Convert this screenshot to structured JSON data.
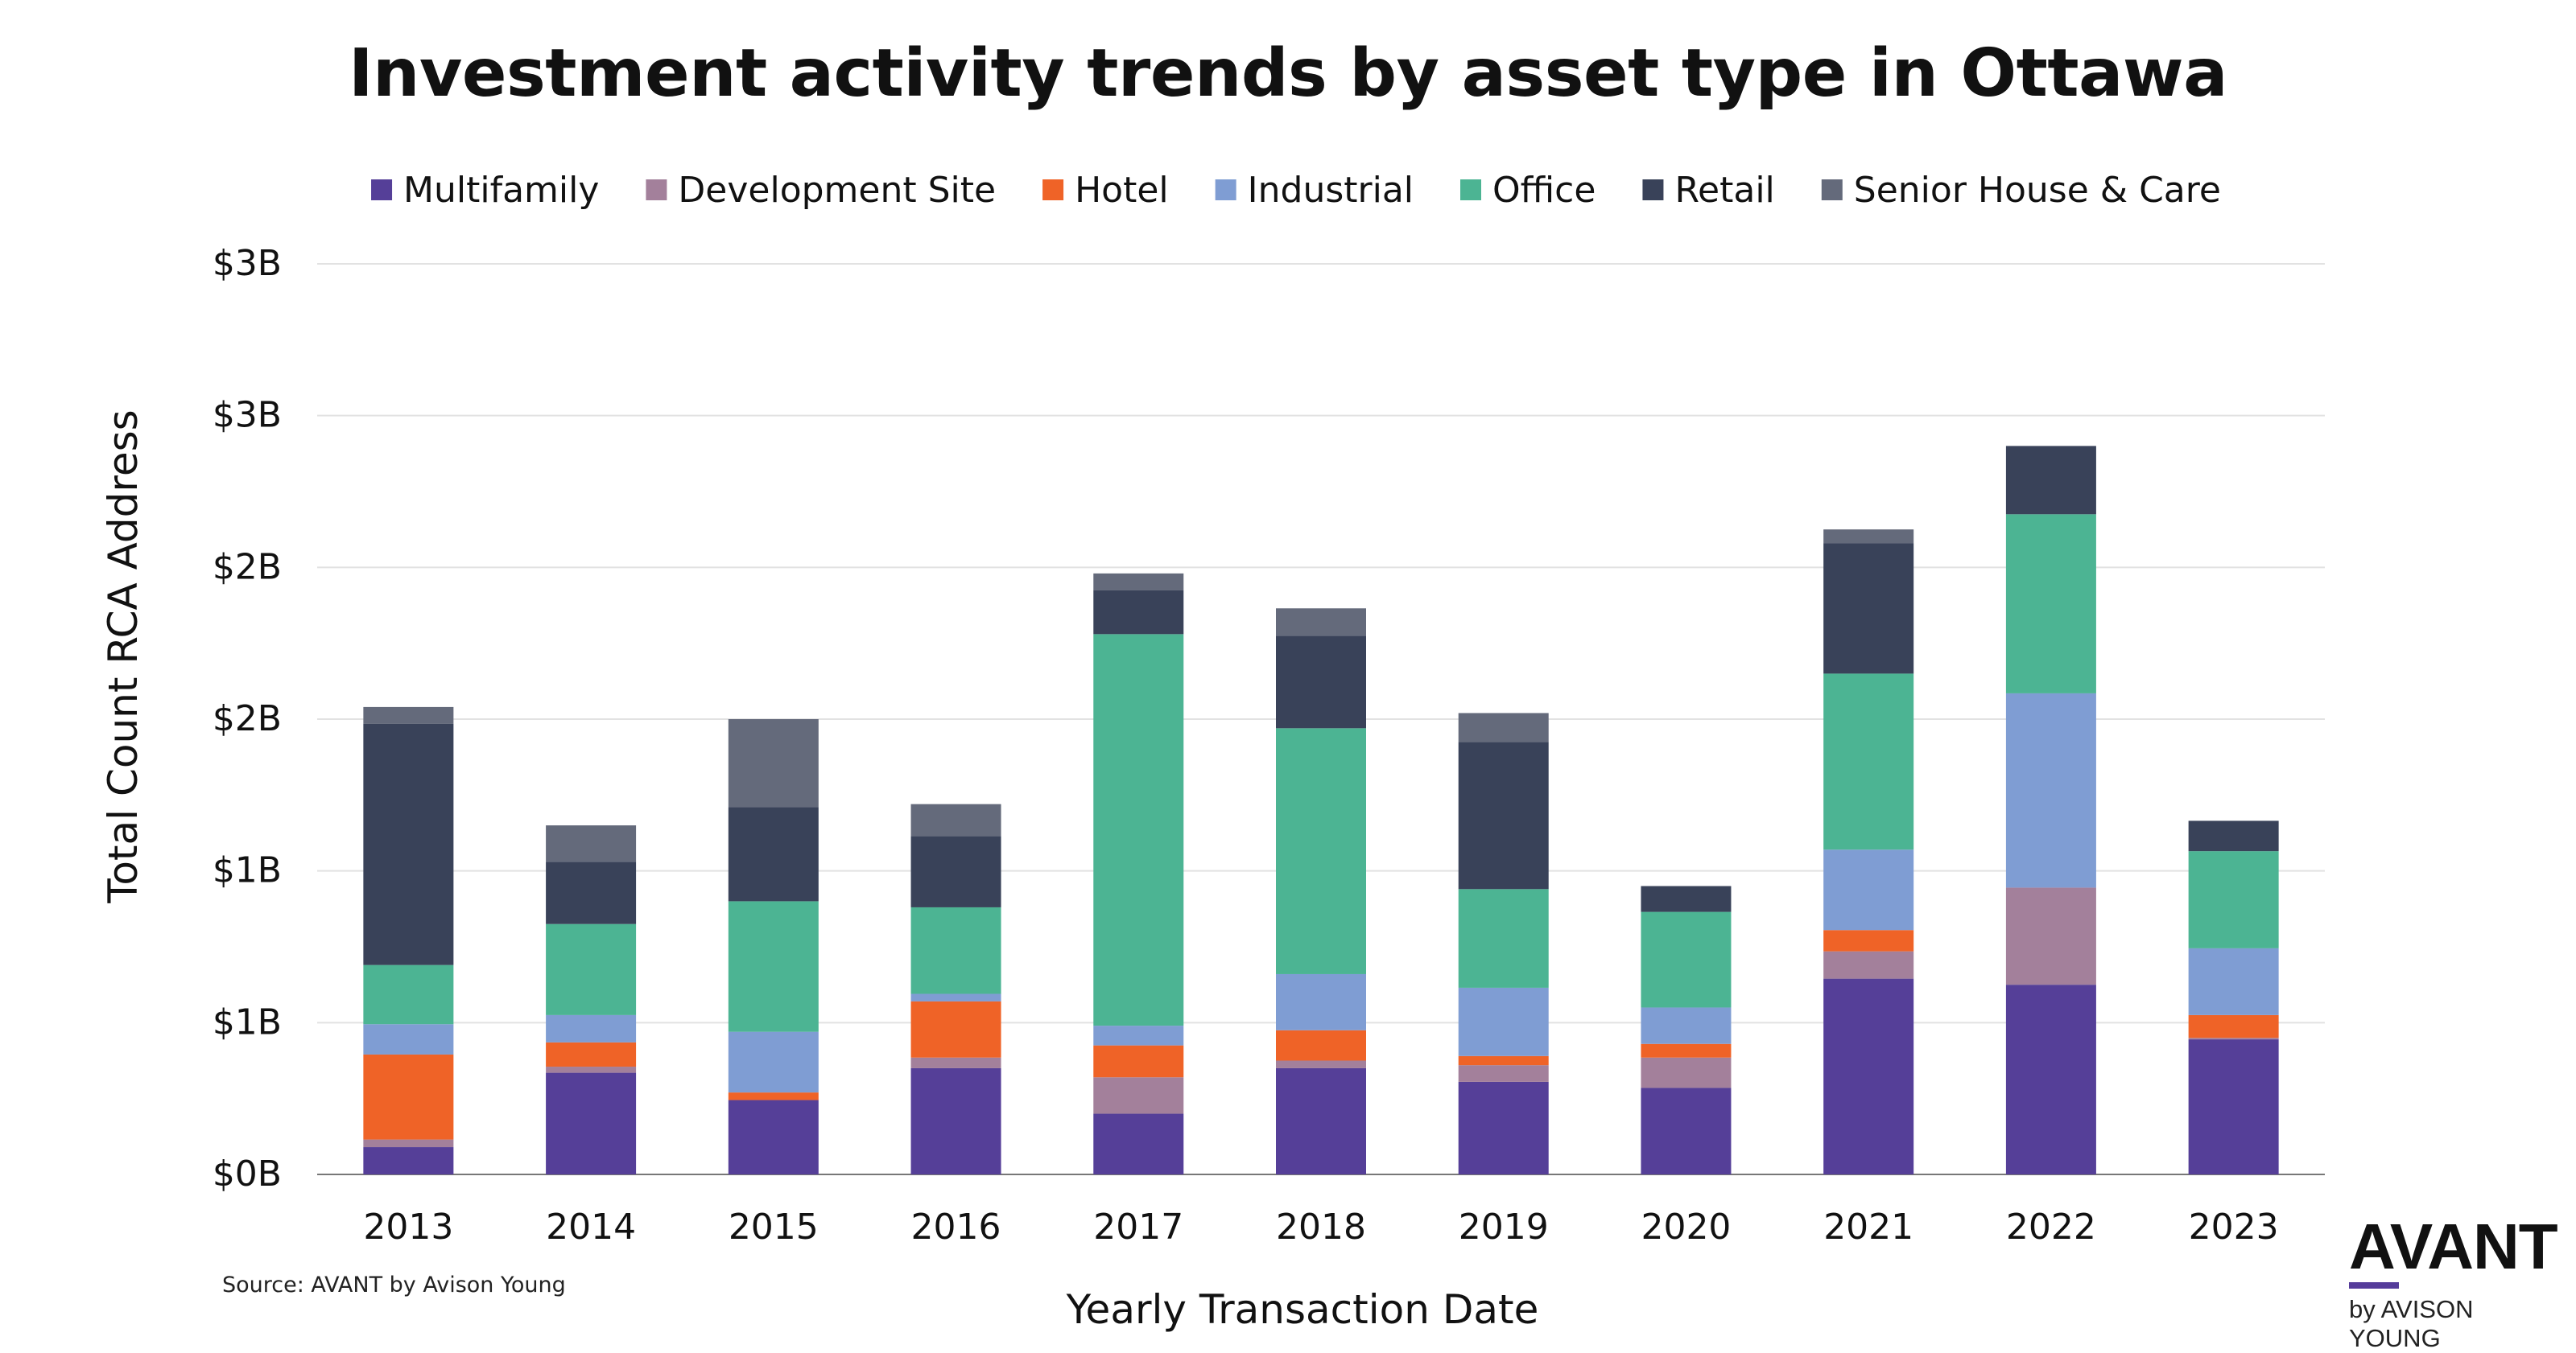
{
  "chart_data": {
    "type": "bar",
    "stacked": true,
    "title": "Investment activity trends by asset type in Ottawa",
    "xlabel": "Yearly Transaction Date",
    "ylabel": "Total Count RCA Address",
    "ylim": [
      0,
      3
    ],
    "y_ticks": [
      0,
      0.5,
      1,
      1.5,
      2,
      2.5,
      3
    ],
    "y_tick_labels": [
      "$0B",
      "$1B",
      "$1B",
      "$2B",
      "$2B",
      "$3B",
      "$3B"
    ],
    "grid": true,
    "legend_position": "top",
    "categories": [
      "2013",
      "2014",
      "2015",
      "2016",
      "2017",
      "2018",
      "2019",
      "2020",
      "2021",
      "2022",
      "2023"
    ],
    "series": [
      {
        "name": "Multifamily",
        "color": "#553f98",
        "values": [
          0.09,
          0.335,
          0.245,
          0.35,
          0.2,
          0.35,
          0.305,
          0.285,
          0.645,
          0.625,
          0.445
        ]
      },
      {
        "name": "Development Site",
        "color": "#a3809b",
        "values": [
          0.025,
          0.02,
          0.0,
          0.035,
          0.12,
          0.025,
          0.055,
          0.1,
          0.09,
          0.32,
          0.005
        ]
      },
      {
        "name": "Hotel",
        "color": "#ef6327",
        "values": [
          0.28,
          0.08,
          0.025,
          0.185,
          0.105,
          0.1,
          0.03,
          0.045,
          0.07,
          0.0,
          0.075
        ]
      },
      {
        "name": "Industrial",
        "color": "#7f9dd3",
        "values": [
          0.1,
          0.09,
          0.2,
          0.025,
          0.065,
          0.185,
          0.225,
          0.12,
          0.265,
          0.64,
          0.22
        ]
      },
      {
        "name": "Office",
        "color": "#4cb493",
        "values": [
          0.195,
          0.3,
          0.43,
          0.285,
          1.29,
          0.81,
          0.325,
          0.315,
          0.58,
          0.59,
          0.32
        ]
      },
      {
        "name": "Retail",
        "color": "#394259",
        "values": [
          0.795,
          0.205,
          0.31,
          0.235,
          0.145,
          0.305,
          0.485,
          0.085,
          0.43,
          0.225,
          0.1
        ]
      },
      {
        "name": "Senior House & Care",
        "color": "#646a7b",
        "values": [
          0.055,
          0.12,
          0.29,
          0.105,
          0.055,
          0.09,
          0.095,
          0.0,
          0.045,
          0.0,
          0.0
        ]
      }
    ]
  },
  "source": "Source: AVANT by Avison Young",
  "logo": {
    "word": "AVANT",
    "sub": "by AVISON YOUNG"
  }
}
